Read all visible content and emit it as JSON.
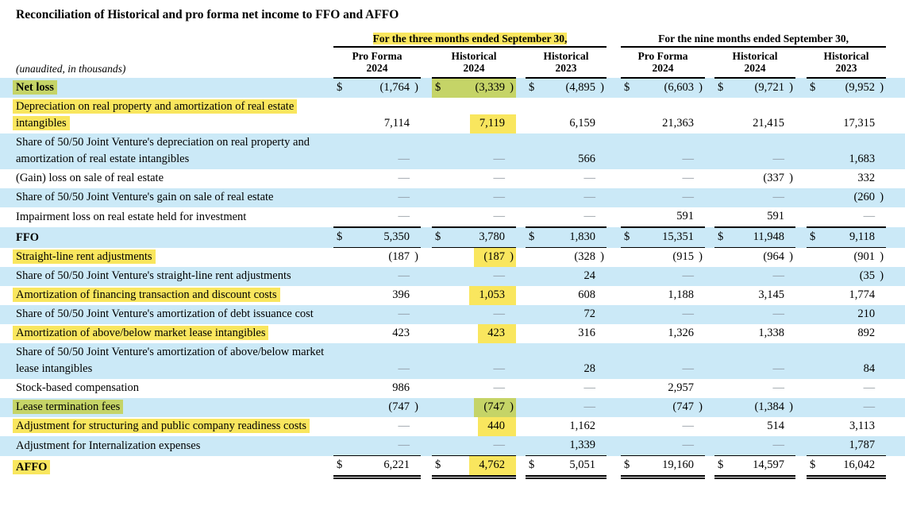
{
  "title": "Reconciliation of Historical and pro forma net income to FFO and AFFO",
  "unaudited_note": "(unaudited, in thousands)",
  "colors": {
    "row_stripe_blue": "#cbe9f7",
    "highlight_yellow": "#f9e65e",
    "highlight_green": "#c5d467",
    "dash_gray": "#879099"
  },
  "groups": [
    {
      "label": "For the three months ended September 30,",
      "highlight": "yellow",
      "columns": [
        {
          "l1": "Pro Forma",
          "l2": "2024"
        },
        {
          "l1": "Historical",
          "l2": "2024"
        },
        {
          "l1": "Historical",
          "l2": "2023"
        }
      ]
    },
    {
      "label": "For the nine months ended September 30,",
      "highlight": null,
      "columns": [
        {
          "l1": "Pro Forma",
          "l2": "2024"
        },
        {
          "l1": "Historical",
          "l2": "2024"
        },
        {
          "l1": "Historical",
          "l2": "2023"
        }
      ]
    }
  ],
  "rows": [
    {
      "name": "net-loss",
      "label": "Net loss",
      "bold": true,
      "labelHl": "green",
      "bg": "blue",
      "dollar": true,
      "values": [
        "(1,764)",
        "(3,339)",
        "(4,895)",
        "(6,603)",
        "(9,721)",
        "(9,952)"
      ],
      "cellHl": [
        null,
        "green",
        null,
        null,
        null,
        null
      ]
    },
    {
      "name": "depreciation-real-property",
      "label": "Depreciation on real property and amortization of real estate intangibles",
      "labelHl": "yellow",
      "bg": "white",
      "values": [
        "7,114",
        "7,119",
        "6,159",
        "21,363",
        "21,415",
        "17,315"
      ],
      "valHl": [
        null,
        "yellow",
        null,
        null,
        null,
        null
      ]
    },
    {
      "name": "jv-depreciation",
      "label": "Share of 50/50 Joint Venture's depreciation on real property and amortization of real estate intangibles",
      "bg": "blue",
      "values": [
        "—",
        "—",
        "566",
        "—",
        "—",
        "1,683"
      ]
    },
    {
      "name": "gain-loss-on-sale",
      "label": "(Gain) loss on sale of real estate",
      "bg": "white",
      "values": [
        "—",
        "—",
        "—",
        "—",
        "(337)",
        "332"
      ]
    },
    {
      "name": "jv-gain-on-sale",
      "label": "Share of 50/50 Joint Venture's gain on sale of real estate",
      "bg": "blue",
      "values": [
        "—",
        "—",
        "—",
        "—",
        "—",
        "(260)"
      ]
    },
    {
      "name": "impairment-loss",
      "label": "Impairment loss on real estate held for investment",
      "bg": "white",
      "values": [
        "—",
        "—",
        "—",
        "591",
        "591",
        "—"
      ]
    },
    {
      "name": "ffo",
      "label": "FFO",
      "bold": true,
      "bg": "blue",
      "dollar": true,
      "rule": "ffo",
      "values": [
        "5,350",
        "3,780",
        "1,830",
        "15,351",
        "11,948",
        "9,118"
      ]
    },
    {
      "name": "straight-line-rent",
      "label": "Straight-line rent adjustments",
      "labelHl": "yellow",
      "bg": "white",
      "values": [
        "(187)",
        "(187)",
        "(328)",
        "(915)",
        "(964)",
        "(901)"
      ],
      "valHl": [
        null,
        "yellow",
        null,
        null,
        null,
        null
      ]
    },
    {
      "name": "jv-straight-line-rent",
      "label": "Share of 50/50 Joint Venture's straight-line rent adjustments",
      "bg": "blue",
      "values": [
        "—",
        "—",
        "24",
        "—",
        "—",
        "(35)"
      ]
    },
    {
      "name": "amortization-financing",
      "label": "Amortization of financing transaction and discount costs",
      "labelHl": "yellow",
      "bg": "white",
      "values": [
        "396",
        "1,053",
        "608",
        "1,188",
        "3,145",
        "1,774"
      ],
      "valHl": [
        null,
        "yellow",
        null,
        null,
        null,
        null
      ]
    },
    {
      "name": "jv-debt-issuance",
      "label": "Share of 50/50 Joint Venture's amortization of debt issuance cost",
      "bg": "blue",
      "values": [
        "—",
        "—",
        "72",
        "—",
        "—",
        "210"
      ]
    },
    {
      "name": "amortization-lease-intangibles",
      "label": "Amortization of above/below market lease intangibles",
      "labelHl": "yellow",
      "bg": "white",
      "values": [
        "423",
        "423",
        "316",
        "1,326",
        "1,338",
        "892"
      ],
      "valHl": [
        null,
        "yellow",
        null,
        null,
        null,
        null
      ]
    },
    {
      "name": "jv-lease-intangibles",
      "label": "Share of 50/50 Joint Venture's amortization of above/below market lease intangibles",
      "bg": "blue",
      "values": [
        "—",
        "—",
        "28",
        "—",
        "—",
        "84"
      ]
    },
    {
      "name": "stock-based-compensation",
      "label": "Stock-based compensation",
      "bg": "white",
      "values": [
        "986",
        "—",
        "—",
        "2,957",
        "—",
        "—"
      ]
    },
    {
      "name": "lease-termination-fees",
      "label": "Lease termination fees",
      "labelHl": "green",
      "bg": "blue",
      "values": [
        "(747)",
        "(747)",
        "—",
        "(747)",
        "(1,384)",
        "—"
      ],
      "valHl": [
        null,
        "green",
        null,
        null,
        null,
        null
      ]
    },
    {
      "name": "structuring-readiness-costs",
      "label": "Adjustment for structuring and public company readiness costs",
      "labelHl": "yellow",
      "bg": "white",
      "values": [
        "—",
        "440",
        "1,162",
        "—",
        "514",
        "3,113"
      ],
      "valHl": [
        null,
        "yellow",
        null,
        null,
        null,
        null
      ]
    },
    {
      "name": "internalization-expenses",
      "label": "Adjustment for Internalization expenses",
      "bg": "blue",
      "values": [
        "—",
        "—",
        "1,339",
        "—",
        "—",
        "1,787"
      ]
    },
    {
      "name": "affo",
      "label": "AFFO",
      "bold": true,
      "labelHl": "yellow",
      "bg": "white",
      "dollar": true,
      "rule": "affo",
      "values": [
        "6,221",
        "4,762",
        "5,051",
        "19,160",
        "14,597",
        "16,042"
      ],
      "valHl": [
        null,
        "yellow",
        null,
        null,
        null,
        null
      ]
    }
  ]
}
